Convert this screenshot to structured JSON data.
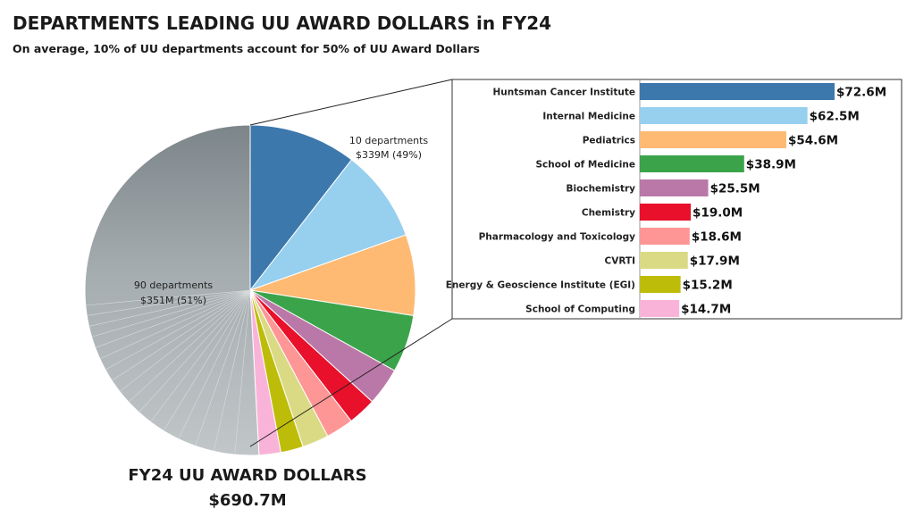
{
  "title": "DEPARTMENTS LEADING UU AWARD DOLLARS in FY24",
  "subtitle": "On average, 10% of UU departments account for 50% of UU Award Dollars",
  "total": {
    "label": "FY24 UU AWARD DOLLARS",
    "value": "$690.7M"
  },
  "callouts": {
    "top": {
      "line1": "10 departments",
      "line2": "$339M (49%)"
    },
    "rest": {
      "line1": "90 departments",
      "line2": "$351M (51%)"
    }
  },
  "chart_data": {
    "type": "pie",
    "unit": "$M",
    "total": 690.7,
    "slices": [
      {
        "label": "Huntsman Cancer Institute",
        "value": 72.6,
        "display": "$72.6M",
        "color": "#3d78ad"
      },
      {
        "label": "Internal Medicine",
        "value": 62.5,
        "display": "$62.5M",
        "color": "#97cfee"
      },
      {
        "label": "Pediatrics",
        "value": 54.6,
        "display": "$54.6M",
        "color": "#feba73"
      },
      {
        "label": "School of Medicine",
        "value": 38.9,
        "display": "$38.9M",
        "color": "#3ba44b"
      },
      {
        "label": "Biochemistry",
        "value": 25.5,
        "display": "$25.5M",
        "color": "#ba78a8"
      },
      {
        "label": "Chemistry",
        "value": 19.0,
        "display": "$19.0M",
        "color": "#e8102a"
      },
      {
        "label": "Pharmacology and Toxicology",
        "value": 18.6,
        "display": "$18.6M",
        "color": "#fe9696"
      },
      {
        "label": "CVRTI",
        "value": 17.9,
        "display": "$17.9M",
        "color": "#dada85"
      },
      {
        "label": "Energy & Geoscience Institute (EGI)",
        "value": 15.2,
        "display": "$15.2M",
        "color": "#bdbd09"
      },
      {
        "label": "School of Computing",
        "value": 14.7,
        "display": "$14.7M",
        "color": "#fab3d8"
      }
    ],
    "other": {
      "departments": 90,
      "value": 351,
      "share_pct": 51,
      "color": "#b7bdbf"
    },
    "breakout": {
      "type": "bar",
      "orientation": "horizontal",
      "sort": "descending"
    }
  }
}
